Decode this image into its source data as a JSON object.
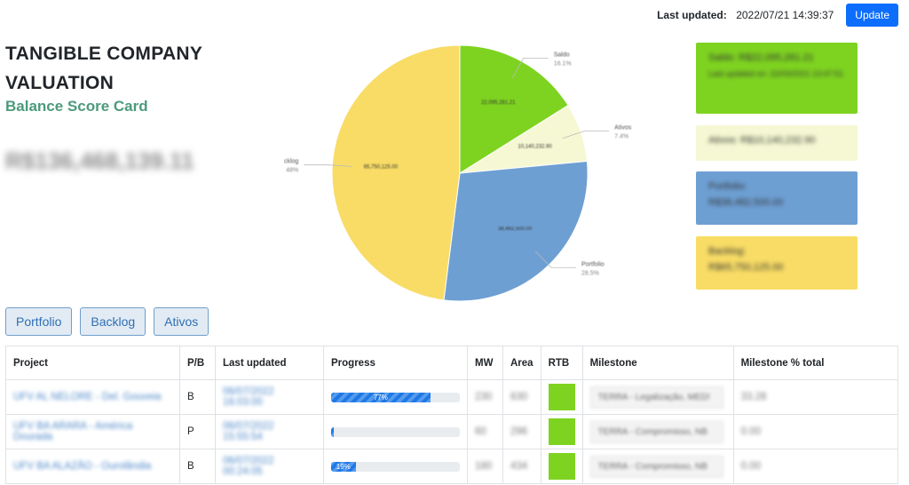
{
  "header": {
    "last_updated_label": "Last updated:",
    "last_updated_value": "2022/07/21 14:39:37",
    "update_button": "Update"
  },
  "page": {
    "title": "TANGIBLE COMPANY VALUATION",
    "subtitle": "Balance Score Card",
    "total_value": "R$136,468,139.11"
  },
  "chart_data": {
    "type": "pie",
    "slices": [
      {
        "name": "Saldo",
        "percent": 16.1,
        "value_label": "22,095,281.21",
        "color": "#7ed321"
      },
      {
        "name": "Ativos",
        "percent": 7.4,
        "value_label": "10,140,232.90",
        "color": "#f5f8d2"
      },
      {
        "name": "Portfolio",
        "percent": 28.5,
        "value_label": "38,482,500.00",
        "color": "#6e9fd3"
      },
      {
        "name": "Backlog",
        "percent": 48.0,
        "value_label": "65,750,125.00",
        "color": "#f8dc66"
      }
    ]
  },
  "cards": {
    "saldo": {
      "line1": "Saldo: R$22,095,281.21",
      "line2": "Last updated on: 22/03/2021 13:47:51",
      "color": "#7ed321"
    },
    "ativos": {
      "line1": "Ativos: R$10,140,232.90",
      "color": "#f5f8d2"
    },
    "portfolio": {
      "line1": "Portfolio:",
      "line2": "R$38,482,500.00",
      "color": "#6e9fd3"
    },
    "backlog": {
      "line1": "Backlog:",
      "line2": "R$65,750,125.00",
      "color": "#f8dc66"
    }
  },
  "tabs": [
    "Portfolio",
    "Backlog",
    "Ativos"
  ],
  "table": {
    "columns": [
      "Project",
      "P/B",
      "Last updated",
      "Progress",
      "MW",
      "Area",
      "RTB",
      "Milestone",
      "Milestone % total"
    ],
    "rows": [
      {
        "project": "UFV AL NELORE - Del. Gouveia",
        "pb": "B",
        "last_updated": "06/07/2022 16:03:00",
        "progress": 77,
        "progress_label": "77%",
        "mw": "230",
        "area": "630",
        "milestone": "TERRA - Legalização, MED!",
        "milestone_total": "33.28"
      },
      {
        "project": "UFV BA ARARA - América Dourada",
        "pb": "P",
        "last_updated": "06/07/2022 15:55:54",
        "progress": 2,
        "progress_label": "",
        "mw": "60",
        "area": "296",
        "milestone": "TERRA - Compromisso, NB",
        "milestone_total": "0.00"
      },
      {
        "project": "UFV BA ALAZÃO - Ourolândia",
        "pb": "B",
        "last_updated": "06/07/2022 00:24:05",
        "progress": 19,
        "progress_label": "19%",
        "mw": "180",
        "area": "434",
        "milestone": "TERRA - Compromisso, NB",
        "milestone_total": "0.00"
      }
    ]
  }
}
